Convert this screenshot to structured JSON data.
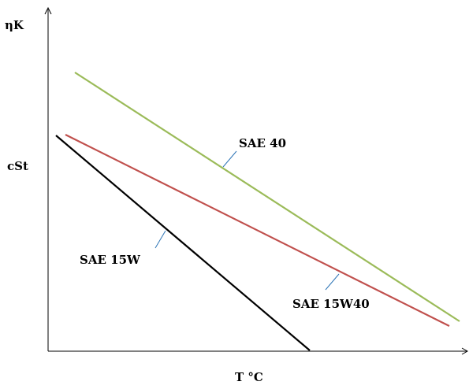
{
  "chart_data": {
    "type": "line",
    "ylabel_top": "ηK",
    "ylabel_side": "cSt",
    "xlabel": "T °C",
    "colors": {
      "axes": "#000000",
      "leader": "#2e75b6"
    },
    "series": [
      {
        "name": "SAE 40",
        "color": "#9bbb59",
        "x": [
          95,
          583
        ],
        "y": [
          92,
          408
        ]
      },
      {
        "name": "SAE 15W40",
        "color": "#c0504d",
        "x": [
          83,
          570
        ],
        "y": [
          171,
          414
        ]
      },
      {
        "name": "SAE 15W",
        "color": "#000000",
        "x": [
          71,
          393
        ],
        "y": [
          172,
          445
        ]
      }
    ]
  }
}
